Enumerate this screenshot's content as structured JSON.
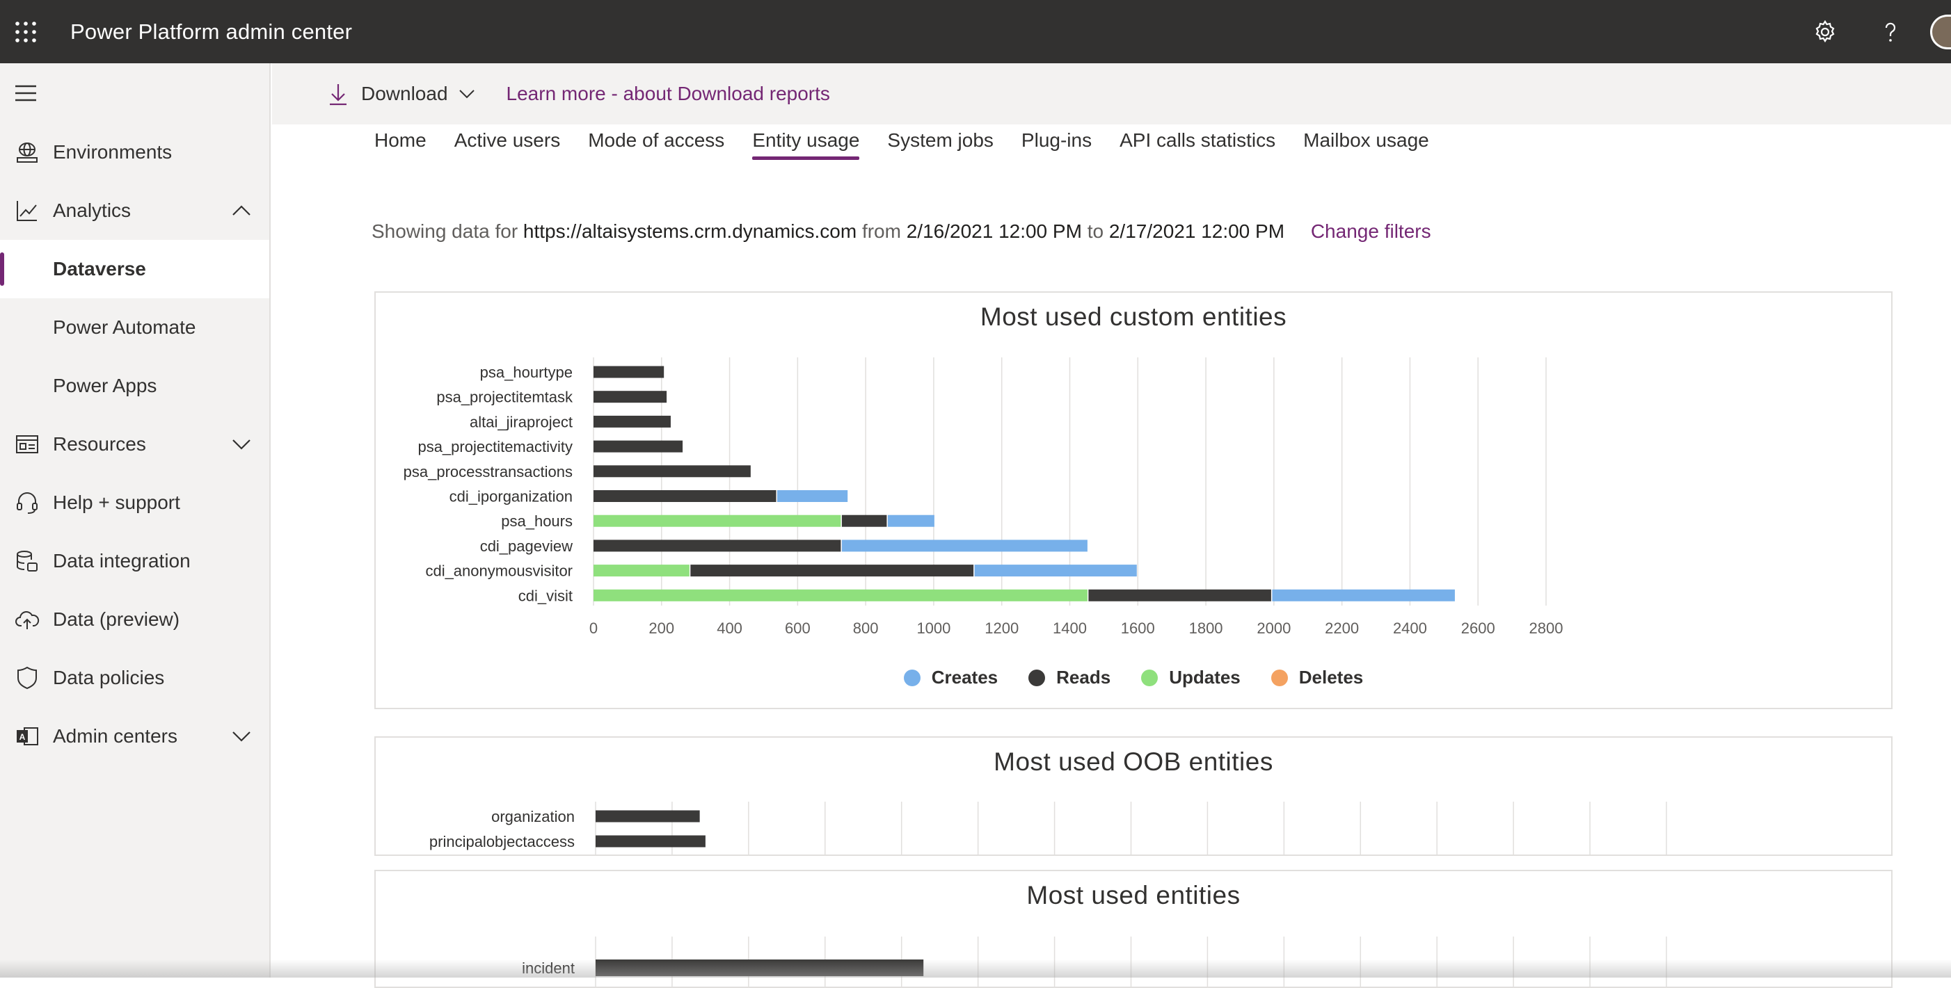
{
  "app": {
    "title": "Power Platform admin center"
  },
  "nav": {
    "items": [
      {
        "label": "Environments",
        "icon": "globe-icon"
      },
      {
        "label": "Analytics",
        "icon": "chart-line-icon",
        "expanded": true
      },
      {
        "label": "Resources",
        "icon": "resources-icon",
        "expanded": false
      },
      {
        "label": "Help + support",
        "icon": "headset-icon"
      },
      {
        "label": "Data integration",
        "icon": "data-integration-icon"
      },
      {
        "label": "Data (preview)",
        "icon": "cloud-upload-icon"
      },
      {
        "label": "Data policies",
        "icon": "shield-icon"
      },
      {
        "label": "Admin centers",
        "icon": "admin-icon",
        "expanded": false
      }
    ],
    "analytics_sub": [
      "Dataverse",
      "Power Automate",
      "Power Apps"
    ],
    "selected": "Dataverse"
  },
  "commandbar": {
    "download_label": "Download",
    "learn_more": "Learn more - about Download reports"
  },
  "tabs": [
    "Home",
    "Active users",
    "Mode of access",
    "Entity usage",
    "System jobs",
    "Plug-ins",
    "API calls statistics",
    "Mailbox usage"
  ],
  "active_tab": "Entity usage",
  "filter": {
    "prefix": "Showing data for",
    "url": "https://altaisystems.crm.dynamics.com",
    "from_word": "from",
    "from": "2/16/2021 12:00 PM",
    "to_word": "to",
    "to": "2/17/2021 12:00 PM",
    "change": "Change filters"
  },
  "colors": {
    "creates": "#77b0ea",
    "reads": "#3b3a39",
    "updates": "#8fe07d",
    "deletes": "#f4a261",
    "accent": "#742774"
  },
  "chart_data": [
    {
      "type": "bar",
      "orientation": "horizontal",
      "stacked": true,
      "title": "Most used custom entities",
      "categories": [
        "psa_hourtype",
        "psa_projectitemtask",
        "altai_jiraproject",
        "psa_projectitemactivity",
        "psa_processtransactions",
        "cdi_iporganization",
        "psa_hours",
        "cdi_pageview",
        "cdi_anonymousvisitor",
        "cdi_visit"
      ],
      "series": [
        {
          "name": "Updates",
          "values": [
            0,
            0,
            0,
            0,
            0,
            0,
            730,
            0,
            285,
            1455
          ]
        },
        {
          "name": "Reads",
          "values": [
            210,
            218,
            230,
            265,
            465,
            540,
            135,
            730,
            835,
            540
          ]
        },
        {
          "name": "Creates",
          "values": [
            0,
            0,
            0,
            0,
            0,
            210,
            140,
            725,
            480,
            540
          ]
        },
        {
          "name": "Deletes",
          "values": [
            0,
            0,
            0,
            0,
            0,
            0,
            0,
            0,
            0,
            0
          ]
        }
      ],
      "xlim": [
        0,
        2800
      ],
      "ticks": [
        "0",
        "200",
        "400",
        "600",
        "800",
        "1000",
        "1200",
        "1400",
        "1600",
        "1800",
        "2000",
        "2200",
        "2400",
        "2600",
        "2800"
      ],
      "legend": "bottom-center",
      "grid": true
    },
    {
      "type": "bar",
      "orientation": "horizontal",
      "stacked": true,
      "title": "Most used OOB entities",
      "categories": [
        "organization",
        "principalobjectaccess"
      ],
      "series": [
        {
          "name": "Reads",
          "values": [
            275,
            290
          ]
        }
      ],
      "xlim": [
        0,
        2800
      ],
      "grid": true
    },
    {
      "type": "bar",
      "orientation": "horizontal",
      "stacked": true,
      "title": "Most used entities",
      "categories": [
        "incident"
      ],
      "series": [
        {
          "name": "Reads",
          "values": [
            860
          ]
        }
      ],
      "xlim": [
        0,
        2800
      ],
      "grid": true
    }
  ]
}
